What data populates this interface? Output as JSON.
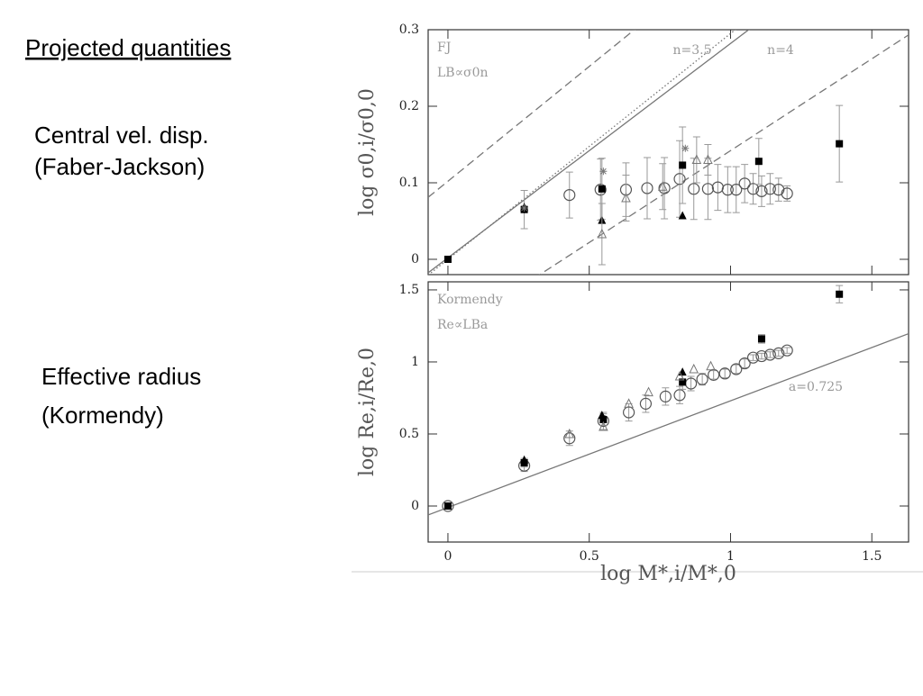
{
  "slide": {
    "title": "Projected quantities",
    "notes": [
      [
        "Central vel. disp.",
        "(Faber-Jackson)"
      ],
      [
        "Effective radius",
        "(Kormendy)"
      ]
    ]
  },
  "chart_data": [
    {
      "type": "scatter",
      "ylabel": "log σ0,i/σ0,0",
      "annotations": [
        "FJ",
        "LB∝σ0n"
      ],
      "xlim": [
        -0.07,
        1.63
      ],
      "xticks": [
        0,
        0.5,
        1,
        1.5
      ],
      "ylim": [
        -0.02,
        0.3
      ],
      "yticks": [
        0,
        0.1,
        0.2,
        0.3
      ],
      "lines": [
        {
          "slope": 0.3,
          "intercept": 0.102,
          "style": "dashed"
        },
        {
          "slope": 0.295,
          "intercept": 0.0,
          "style": "dotted",
          "label": "n=3.5"
        },
        {
          "slope": 0.28,
          "intercept": 0.002,
          "style": "solid",
          "label": "n=4"
        },
        {
          "slope": 0.24,
          "intercept": -0.098,
          "style": "dashed"
        }
      ],
      "series": [
        {
          "marker": "circle",
          "color": "#555555",
          "x": [
            0.43,
            0.54,
            0.63,
            0.705,
            0.766,
            0.82,
            0.87,
            0.92,
            0.955,
            0.99,
            1.02,
            1.05,
            1.08,
            1.11,
            1.14,
            1.17,
            1.2
          ],
          "values": [
            0.084,
            0.091,
            0.091,
            0.093,
            0.093,
            0.105,
            0.092,
            0.092,
            0.094,
            0.091,
            0.091,
            0.099,
            0.092,
            0.089,
            0.092,
            0.091,
            0.086
          ],
          "errors": [
            0.03,
            0.04,
            0.035,
            0.04,
            0.04,
            0.05,
            0.04,
            0.04,
            0.03,
            0.03,
            0.03,
            0.025,
            0.02,
            0.02,
            0.02,
            0.015,
            0.01
          ]
        },
        {
          "marker": "square",
          "color": "#000000",
          "x": [
            0,
            0.27,
            0.545,
            0.83,
            1.1,
            1.385
          ],
          "values": [
            0,
            0.065,
            0.092,
            0.123,
            0.128,
            0.151
          ],
          "errors": [
            0.003,
            0.025,
            0.04,
            0.05,
            0.03,
            0.05
          ]
        },
        {
          "marker": "triangle",
          "color": "#000000",
          "x": [
            0.27,
            0.545,
            0.83
          ],
          "values": [
            0.068,
            0.051,
            0.057
          ]
        },
        {
          "marker": "open-triangle",
          "color": "#777777",
          "x": [
            0.545,
            0.63,
            0.76,
            0.88,
            0.92
          ],
          "values": [
            0.033,
            0.08,
            0.095,
            0.13,
            0.13
          ],
          "errors": [
            0.04,
            0.03,
            0.03,
            0.03,
            0.02
          ]
        },
        {
          "marker": "asterisk",
          "color": "#777777",
          "x": [
            0.27,
            0.55,
            0.84
          ],
          "values": [
            0.067,
            0.115,
            0.145
          ]
        }
      ]
    },
    {
      "type": "scatter",
      "ylabel": "log Re,i/Re,0",
      "xlabel": "log M*,i/M*,0",
      "annotations": [
        "Kormendy",
        "Re∝LBa"
      ],
      "xlim": [
        -0.07,
        1.63
      ],
      "xticks": [
        0,
        0.5,
        1,
        1.5
      ],
      "ylim": [
        -0.25,
        1.556
      ],
      "yticks": [
        0,
        0.5,
        1,
        1.5
      ],
      "lines": [
        {
          "slope": 0.74,
          "intercept": -0.01,
          "style": "solid",
          "label": "a=0.725"
        }
      ],
      "series": [
        {
          "marker": "circle",
          "color": "#555555",
          "x": [
            0,
            0.27,
            0.43,
            0.55,
            0.64,
            0.7,
            0.77,
            0.82,
            0.86,
            0.9,
            0.94,
            0.98,
            1.02,
            1.05,
            1.08,
            1.11,
            1.14,
            1.17,
            1.2
          ],
          "values": [
            0,
            0.28,
            0.47,
            0.59,
            0.65,
            0.71,
            0.76,
            0.77,
            0.85,
            0.88,
            0.91,
            0.92,
            0.95,
            0.99,
            1.03,
            1.04,
            1.05,
            1.06,
            1.08
          ],
          "errors": [
            0.01,
            0.04,
            0.05,
            0.06,
            0.06,
            0.06,
            0.06,
            0.06,
            0.05,
            0.04,
            0.03,
            0.03,
            0.03,
            0.03,
            0.02,
            0.02,
            0.02,
            0.02,
            0.02
          ]
        },
        {
          "marker": "square",
          "color": "#000000",
          "x": [
            0,
            0.27,
            0.55,
            0.83,
            1.11,
            1.385
          ],
          "values": [
            0,
            0.3,
            0.6,
            0.86,
            1.16,
            1.47
          ],
          "errors": [
            0.01,
            0.03,
            0.04,
            0.05,
            0.03,
            0.06
          ]
        },
        {
          "marker": "triangle",
          "color": "#000000",
          "x": [
            0.27,
            0.545,
            0.83
          ],
          "values": [
            0.32,
            0.63,
            0.93
          ]
        },
        {
          "marker": "open-triangle",
          "color": "#777777",
          "x": [
            0.43,
            0.55,
            0.64,
            0.71,
            0.82,
            0.87,
            0.93
          ],
          "values": [
            0.5,
            0.55,
            0.71,
            0.79,
            0.9,
            0.95,
            0.97
          ]
        }
      ]
    }
  ]
}
